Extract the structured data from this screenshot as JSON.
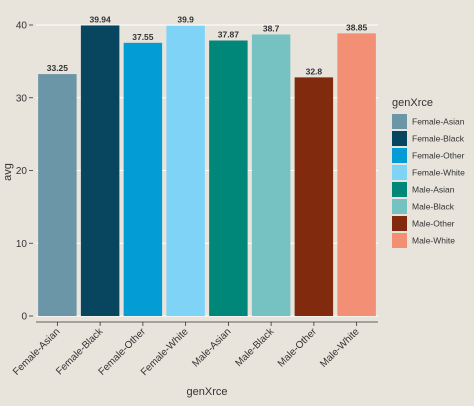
{
  "chart_data": {
    "type": "bar",
    "categories": [
      "Female-Asian",
      "Female-Black",
      "Female-Other",
      "Female-White",
      "Male-Asian",
      "Male-Black",
      "Male-Other",
      "Male-White"
    ],
    "values": [
      33.25,
      39.94,
      37.55,
      39.9,
      37.87,
      38.7,
      32.8,
      38.85
    ],
    "value_labels": [
      "33.25",
      "39.94",
      "37.55",
      "39.9",
      "37.87",
      "38.7",
      "32.8",
      "38.85"
    ],
    "colors": [
      "#6b96a8",
      "#08455f",
      "#039cd4",
      "#7fd3f7",
      "#00877a",
      "#76c2c2",
      "#822a0e",
      "#f28f74"
    ],
    "title": "",
    "xlabel": "genXrce",
    "ylabel": "avg",
    "ylim": [
      0,
      40
    ],
    "yticks": [
      0,
      10,
      20,
      30,
      40
    ],
    "grid": true,
    "legend": {
      "title": "genXrce",
      "placement": "right",
      "entries": [
        "Female-Asian",
        "Female-Black",
        "Female-Other",
        "Female-White",
        "Male-Asian",
        "Male-Black",
        "Male-Other",
        "Male-White"
      ]
    }
  }
}
